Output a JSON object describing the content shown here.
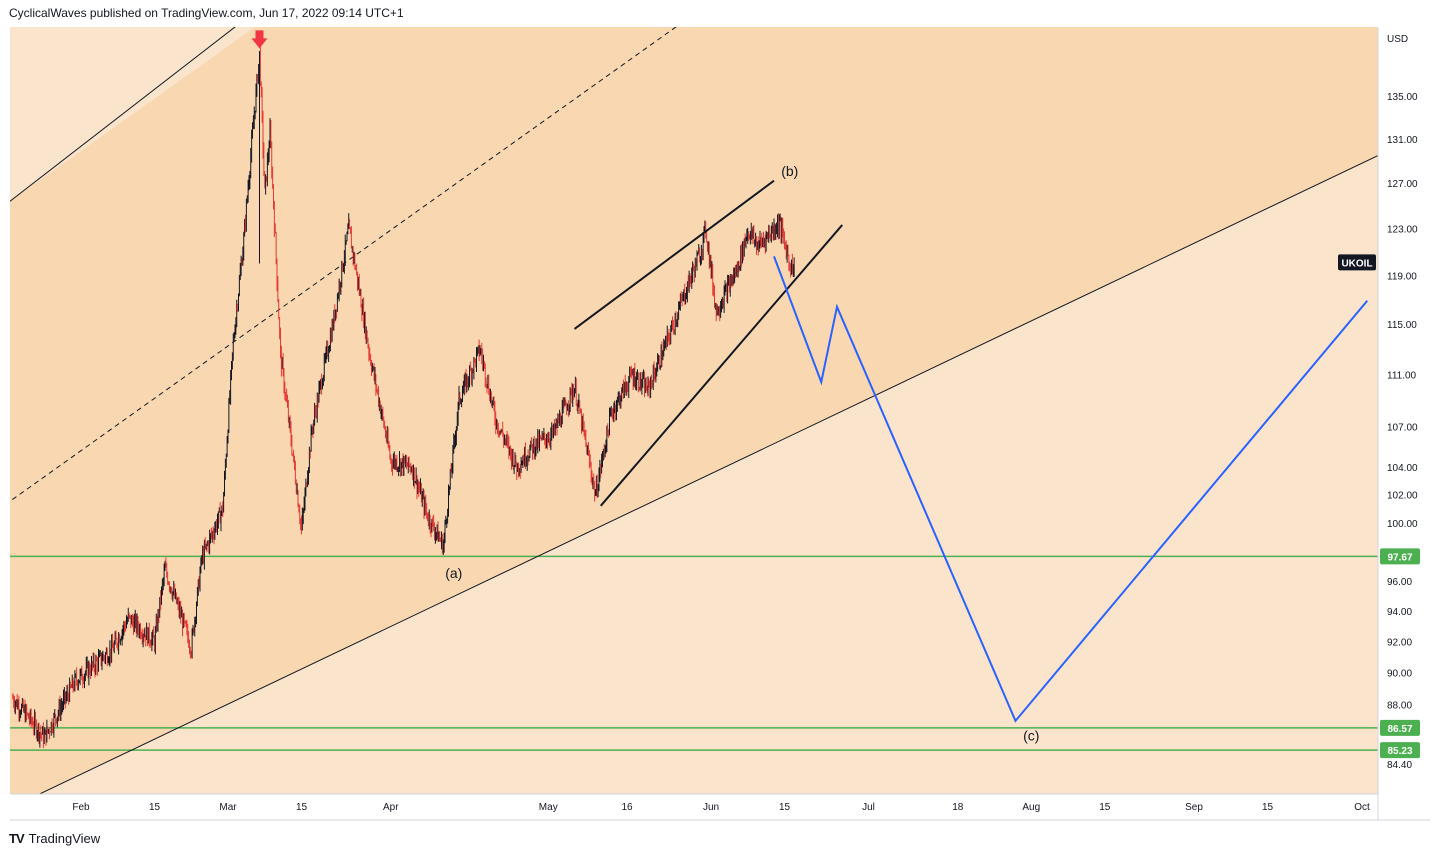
{
  "header": {
    "publisher_line": "CyclicalWaves published on TradingView.com, Jun 17, 2022 09:14 UTC+1"
  },
  "footer": {
    "logo_icon": "tradingview-logo-icon",
    "brand": "TradingView"
  },
  "colors": {
    "outer_band": "#fbe4cc",
    "inner_band": "#f9d8b1",
    "candle_up": "#131722",
    "candle_down": "#e53935",
    "support_line": "#4caf50",
    "projection": "#2962ff",
    "arrow": "#f23645"
  },
  "chart_data": {
    "type": "candlestick",
    "symbol": "UKOIL",
    "currency": "USD",
    "price_scale": "log",
    "ylim": [
      83.6,
      140.5
    ],
    "y_ticks": [
      "135.00",
      "131.00",
      "127.00",
      "123.00",
      "119.00",
      "115.00",
      "111.00",
      "107.00",
      "104.00",
      "102.00",
      "100.00",
      "96.00",
      "94.00",
      "92.00",
      "90.00",
      "88.00",
      "84.40"
    ],
    "x_ticks": [
      "Feb",
      "15",
      "Mar",
      "15",
      "Apr",
      "May",
      "16",
      "Jun",
      "15",
      "Jul",
      "18",
      "Aug",
      "15",
      "Sep",
      "15",
      "Oct"
    ],
    "price_labels": [
      {
        "text": "UKOIL",
        "value": 120.1,
        "style": "dark"
      },
      {
        "text": "97.67",
        "value": 97.67,
        "style": "green"
      },
      {
        "text": "86.57",
        "value": 86.57,
        "style": "green"
      },
      {
        "text": "85.23",
        "value": 85.23,
        "style": "green"
      }
    ],
    "horizontal_levels": [
      97.67,
      86.57,
      85.23
    ],
    "price_path": [
      [
        "2022-01-19",
        88.4
      ],
      [
        "2022-01-25",
        86.0
      ],
      [
        "2022-01-31",
        89.5
      ],
      [
        "2022-02-07",
        91.5
      ],
      [
        "2022-02-10",
        93.5
      ],
      [
        "2022-02-15",
        92.0
      ],
      [
        "2022-02-17",
        96.8
      ],
      [
        "2022-02-22",
        91.6
      ],
      [
        "2022-02-24",
        97.5
      ],
      [
        "2022-02-28",
        101.0
      ],
      [
        "2022-03-02",
        113.5
      ],
      [
        "2022-03-04",
        122.0
      ],
      [
        "2022-03-07",
        139.0
      ],
      [
        "2022-03-08",
        126.0
      ],
      [
        "2022-03-09",
        131.5
      ],
      [
        "2022-03-11",
        112.5
      ],
      [
        "2022-03-15",
        99.5
      ],
      [
        "2022-03-17",
        106.8
      ],
      [
        "2022-03-21",
        115.0
      ],
      [
        "2022-03-24",
        123.0
      ],
      [
        "2022-03-28",
        112.5
      ],
      [
        "2022-04-01",
        104.5
      ],
      [
        "2022-04-05",
        104.0
      ],
      [
        "2022-04-08",
        100.5
      ],
      [
        "2022-04-11",
        98.4
      ],
      [
        "2022-04-14",
        109.0
      ],
      [
        "2022-04-18",
        113.0
      ],
      [
        "2022-04-21",
        107.5
      ],
      [
        "2022-04-25",
        104.0
      ],
      [
        "2022-04-28",
        105.5
      ],
      [
        "2022-05-02",
        106.5
      ],
      [
        "2022-05-06",
        110.0
      ],
      [
        "2022-05-10",
        102.0
      ],
      [
        "2022-05-13",
        108.0
      ],
      [
        "2022-05-17",
        111.0
      ],
      [
        "2022-05-20",
        109.8
      ],
      [
        "2022-05-24",
        114.0
      ],
      [
        "2022-05-30",
        121.0
      ],
      [
        "2022-05-31",
        123.0
      ],
      [
        "2022-06-02",
        116.0
      ],
      [
        "2022-06-06",
        119.5
      ],
      [
        "2022-06-08",
        122.8
      ],
      [
        "2022-06-10",
        121.5
      ],
      [
        "2022-06-14",
        123.5
      ],
      [
        "2022-06-16",
        120.0
      ],
      [
        "2022-06-17",
        119.5
      ]
    ],
    "channel": {
      "upper": [
        [
          "2022-01-18",
          125.2
        ],
        [
          "2022-03-25",
          151.2
        ]
      ],
      "middle_dashed": [
        [
          "2022-01-18",
          101.4
        ],
        [
          "2022-07-04",
          157.3
        ]
      ],
      "lower": [
        [
          "2022-01-30",
          83.5
        ],
        [
          "2022-10-04",
          129.0
        ]
      ]
    },
    "wedge": {
      "upper": [
        [
          "2022-05-06",
          114.6
        ],
        [
          "2022-06-13",
          127.2
        ]
      ],
      "lower": [
        [
          "2022-05-11",
          101.2
        ],
        [
          "2022-06-26",
          123.3
        ]
      ]
    },
    "projection_path": [
      [
        "2022-06-13",
        120.6
      ],
      [
        "2022-06-22",
        110.4
      ],
      [
        "2022-06-25",
        116.4
      ],
      [
        "2022-07-29",
        87.0
      ],
      [
        "2022-10-04",
        116.9
      ]
    ],
    "wave_labels": [
      {
        "text": "(a)",
        "date": "2022-04-13",
        "value": 96.2
      },
      {
        "text": "(b)",
        "date": "2022-06-16",
        "value": 127.6
      },
      {
        "text": "(c)",
        "date": "2022-08-01",
        "value": 85.8
      }
    ],
    "peak_marker": {
      "date": "2022-03-07",
      "value": 139.3
    }
  }
}
